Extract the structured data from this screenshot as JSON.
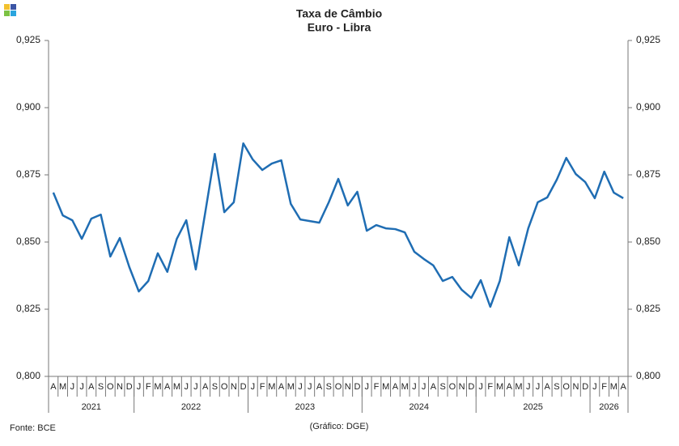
{
  "chart_data": {
    "type": "line",
    "title": "Taxa de Câmbio",
    "subtitle": "Euro - Libra",
    "source": "Fonte: BCE",
    "credit": "(Gráfico: DGE)",
    "categories": [
      "A",
      "M",
      "J",
      "J",
      "A",
      "S",
      "O",
      "N",
      "D",
      "J",
      "F",
      "M",
      "A",
      "M",
      "J",
      "J",
      "A",
      "S",
      "O",
      "N",
      "D",
      "J",
      "F",
      "M",
      "A",
      "M",
      "J",
      "J",
      "A",
      "S",
      "O",
      "N",
      "D",
      "J",
      "F",
      "M",
      "A",
      "M",
      "J",
      "J",
      "A",
      "S",
      "O",
      "N",
      "D",
      "J",
      "F",
      "M",
      "A",
      "M",
      "J",
      "J",
      "A",
      "S",
      "O",
      "N",
      "D",
      "J",
      "F",
      "M",
      "A"
    ],
    "year_groups": [
      "2021",
      "2022",
      "2023",
      "2024",
      "2025",
      "2026"
    ],
    "series": [
      {
        "color": "#1f6db3",
        "values": [
          0.8684,
          0.8599,
          0.8581,
          0.8512,
          0.8587,
          0.8602,
          0.8446,
          0.8515,
          0.8407,
          0.8316,
          0.8355,
          0.8458,
          0.8389,
          0.8512,
          0.8581,
          0.8398,
          0.8611,
          0.8828,
          0.8611,
          0.8648,
          0.8867,
          0.8807,
          0.8768,
          0.8792,
          0.8804,
          0.8642,
          0.8584,
          0.8578,
          0.8572,
          0.8648,
          0.8735,
          0.8636,
          0.8687,
          0.8542,
          0.8563,
          0.8551,
          0.8548,
          0.8536,
          0.8464,
          0.8437,
          0.8413,
          0.8355,
          0.837,
          0.8322,
          0.8292,
          0.8358,
          0.8259,
          0.8355,
          0.8518,
          0.8413,
          0.8551,
          0.8648,
          0.8666,
          0.8732,
          0.8813,
          0.8753,
          0.8723,
          0.8663,
          0.8762,
          0.8684,
          0.8663
        ]
      }
    ],
    "ylim": [
      0.8,
      0.925
    ],
    "yticks": [
      {
        "value": 0.8,
        "label": "0,800"
      },
      {
        "value": 0.825,
        "label": "0,825"
      },
      {
        "value": 0.85,
        "label": "0,850"
      },
      {
        "value": 0.875,
        "label": "0,875"
      },
      {
        "value": 0.9,
        "label": "0,900"
      },
      {
        "value": 0.925,
        "label": "0,925"
      }
    ],
    "right_axis": true
  }
}
